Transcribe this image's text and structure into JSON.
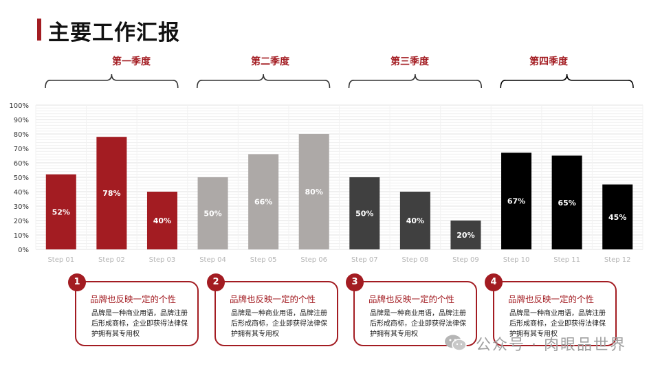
{
  "header": {
    "title": "主要工作汇报"
  },
  "quarters": [
    "第一季度",
    "第二季度",
    "第三季度",
    "第四季度"
  ],
  "chart_data": {
    "type": "bar",
    "categories": [
      "Step 01",
      "Step 02",
      "Step 03",
      "Step 04",
      "Step 05",
      "Step 06",
      "Step 07",
      "Step 08",
      "Step 09",
      "Step 10",
      "Step 11",
      "Step 12"
    ],
    "values": [
      52,
      78,
      40,
      50,
      66,
      80,
      50,
      40,
      20,
      67,
      65,
      45
    ],
    "labels": [
      "52%",
      "78%",
      "40%",
      "50%",
      "66%",
      "80%",
      "50%",
      "40%",
      "20%",
      "67%",
      "65%",
      "45%"
    ],
    "y_ticks": [
      "0%",
      "10%",
      "20%",
      "30%",
      "40%",
      "50%",
      "60%",
      "70%",
      "80%",
      "90%",
      "100%"
    ],
    "ylim": [
      0,
      100
    ],
    "groups": [
      "第一季度",
      "第二季度",
      "第三季度",
      "第四季度"
    ],
    "colors": [
      "#a31c22",
      "#a31c22",
      "#a31c22",
      "#ada9a7",
      "#ada9a7",
      "#ada9a7",
      "#404040",
      "#404040",
      "#404040",
      "#000000",
      "#000000",
      "#000000"
    ],
    "grid": true
  },
  "cards": [
    {
      "num": "1",
      "title": "品牌也反映一定的个性",
      "body": "品牌是一种商业用语，品牌注册后形成商标，企业即获得法律保护拥有其专用权"
    },
    {
      "num": "2",
      "title": "品牌也反映一定的个性",
      "body": "品牌是一种商业用语，品牌注册后形成商标，企业即获得法律保护拥有其专用权"
    },
    {
      "num": "3",
      "title": "品牌也反映一定的个性",
      "body": "品牌是一种商业用语，品牌注册后形成商标，企业即获得法律保护拥有其专用权"
    },
    {
      "num": "4",
      "title": "品牌也反映一定的个性",
      "body": "品牌是一种商业用语，品牌注册后形成商标，企业即获得法律保护拥有其专用权"
    }
  ],
  "watermark": {
    "text": "公众号 · 肉眼品世界",
    "icon": "wechat-icon"
  },
  "colors": {
    "accent": "#a31c22"
  }
}
